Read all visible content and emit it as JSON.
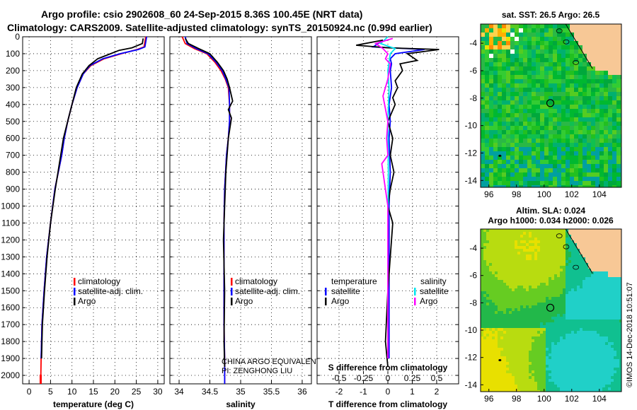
{
  "title": {
    "line1": "Argo profile: csio 2902608_60 24-Sep-2015 8.36S 100.45E (NRT data)",
    "line2": "Climatology: CARS2009. Satellite-adjusted climatology: synTS_20150924.nc (0.99d earlier)"
  },
  "colors": {
    "climatology": "#ff0000",
    "satellite": "#0000ff",
    "argo": "#000000",
    "salinity_satellite": "#00e5ee",
    "salinity_argo": "#ff00ff",
    "land": "#f7c896"
  },
  "depth_axis": {
    "ylim": [
      0,
      2050
    ],
    "ticks": [
      0,
      100,
      200,
      300,
      400,
      500,
      600,
      700,
      800,
      900,
      1000,
      1100,
      1200,
      1300,
      1400,
      1500,
      1600,
      1700,
      1800,
      1900,
      2000
    ]
  },
  "chart_data": [
    {
      "name": "temperature-profile",
      "type": "line",
      "xlabel": "temperature (deg C)",
      "xlim": [
        -1.5,
        31.5
      ],
      "xticks": [
        0,
        5,
        10,
        15,
        20,
        25,
        30
      ],
      "series": [
        {
          "name": "climatology",
          "color": "#ff0000",
          "x": [
            27.2,
            26.8,
            25.2,
            21.5,
            17.5,
            14.4,
            12.6,
            11.2,
            10.0,
            9.0,
            8.2,
            7.6,
            6.0,
            5.0,
            4.1,
            3.5,
            3.0,
            2.8,
            2.7
          ],
          "y": [
            0,
            60,
            75,
            100,
            130,
            170,
            220,
            300,
            400,
            500,
            600,
            700,
            900,
            1100,
            1300,
            1500,
            1700,
            1900,
            2050
          ]
        },
        {
          "name": "satellite-adj. clim.",
          "color": "#0000ff",
          "x": [
            27.4,
            27.0,
            25.5,
            21.2,
            17.2,
            14.2,
            12.6,
            11.2,
            10.0,
            9.0,
            8.2,
            7.6,
            6.0,
            5.0,
            4.1,
            3.5,
            3.0,
            2.8
          ],
          "y": [
            0,
            60,
            75,
            100,
            130,
            170,
            220,
            300,
            400,
            500,
            600,
            700,
            900,
            1100,
            1300,
            1500,
            1700,
            1900
          ]
        },
        {
          "name": "Argo",
          "color": "#000000",
          "x": [
            26.6,
            26.4,
            24.0,
            21.0,
            19.0,
            16.0,
            14.0,
            12.4,
            11.0,
            10.0,
            9.0,
            8.0,
            6.1,
            5.0,
            4.2,
            3.6,
            3.1,
            2.9
          ],
          "y": [
            10,
            40,
            65,
            80,
            100,
            130,
            170,
            220,
            300,
            400,
            500,
            600,
            900,
            1100,
            1300,
            1500,
            1700,
            1900
          ]
        }
      ],
      "legend": [
        "climatology",
        "satellite-adj. clim.",
        "Argo"
      ]
    },
    {
      "name": "salinity-profile",
      "type": "line",
      "xlabel": "salinity",
      "xlim": [
        33.85,
        36.15
      ],
      "xticks": [
        34,
        34.5,
        35,
        35.5,
        36
      ],
      "xticklabels": [
        "34",
        "34.5",
        "35",
        "35.5",
        "36"
      ],
      "series": [
        {
          "name": "climatology",
          "color": "#ff0000",
          "x": [
            34.05,
            34.1,
            34.25,
            34.45,
            34.58,
            34.68,
            34.75,
            34.8,
            34.82,
            34.82,
            34.8,
            34.77,
            34.74,
            34.73,
            34.73,
            34.73,
            34.74,
            34.74
          ],
          "y": [
            0,
            40,
            70,
            100,
            150,
            200,
            250,
            300,
            400,
            500,
            600,
            700,
            900,
            1100,
            1400,
            1700,
            1900,
            2050
          ]
        },
        {
          "name": "satellite-adj. clim.",
          "color": "#0000ff",
          "x": [
            34.1,
            34.13,
            34.28,
            34.47,
            34.6,
            34.7,
            34.76,
            34.81,
            34.82,
            34.82,
            34.8,
            34.77,
            34.74,
            34.73,
            34.73,
            34.73,
            34.74,
            34.74
          ],
          "y": [
            0,
            40,
            70,
            100,
            150,
            200,
            250,
            300,
            400,
            500,
            600,
            700,
            900,
            1100,
            1400,
            1700,
            1900,
            2050
          ]
        },
        {
          "name": "Argo",
          "color": "#000000",
          "x": [
            34.1,
            34.15,
            34.32,
            34.5,
            34.62,
            34.72,
            34.78,
            34.82,
            34.87,
            34.8,
            34.85,
            34.8,
            34.76,
            34.74,
            34.72,
            34.74,
            34.73,
            34.74
          ],
          "y": [
            10,
            40,
            70,
            100,
            150,
            200,
            250,
            300,
            380,
            430,
            480,
            600,
            800,
            1000,
            1200,
            1500,
            1800,
            1950
          ]
        }
      ],
      "legend": [
        "climatology",
        "satellite-adj. clim.",
        "Argo"
      ],
      "annotation": [
        "CHINA ARGO EQUIVALENT",
        "PI: ZENGHONG LIU"
      ]
    },
    {
      "name": "difference-profile",
      "type": "line",
      "xlabel": "T difference from climatology",
      "xlim": [
        -2.9,
        2.9
      ],
      "xticks": [
        -2,
        -1,
        0,
        1,
        2
      ],
      "secondary_axis": {
        "label": "S difference from climatology",
        "ticks": [
          -0.5,
          -0.25,
          0,
          0.25,
          0.5
        ],
        "ticklabels": [
          "-0.5",
          "-0.25",
          "0",
          "0.25",
          "0.5"
        ],
        "scale": 4
      },
      "series": [
        {
          "name": "temperature satellite",
          "color": "#0000ff",
          "x": [
            -0.2,
            -0.6,
            1.5,
            0.3,
            0.1,
            0.15,
            0.1,
            0.15,
            0.05,
            0.1,
            0.05,
            0.1,
            0.05,
            0.05,
            0.05,
            0.05
          ],
          "y": [
            20,
            60,
            75,
            100,
            130,
            160,
            200,
            300,
            400,
            500,
            600,
            800,
            1000,
            1300,
            1600,
            1900
          ]
        },
        {
          "name": "temperature Argo",
          "color": "#000000",
          "x": [
            -0.2,
            -1.3,
            0.0,
            2.1,
            0.8,
            1.2,
            0.5,
            0.6,
            0.3,
            0.4,
            0.2,
            0.3,
            0.0,
            0.2,
            0.1,
            0.25,
            0.1,
            0.0,
            0.2,
            0.1,
            0.0,
            -0.1,
            0.0
          ],
          "y": [
            20,
            50,
            65,
            75,
            100,
            140,
            160,
            200,
            260,
            300,
            360,
            400,
            500,
            600,
            700,
            800,
            900,
            1000,
            1100,
            1300,
            1500,
            1800,
            1950
          ]
        },
        {
          "name": "salinity satellite",
          "color": "#00e5ee",
          "x": [
            0.0,
            -0.3,
            0.3,
            0.1,
            0.05,
            0.0,
            0.05,
            0.0,
            0.02,
            0.0,
            0.0
          ],
          "y": [
            0,
            40,
            70,
            100,
            150,
            200,
            300,
            500,
            800,
            1200,
            1900
          ]
        },
        {
          "name": "salinity Argo",
          "color": "#ff00ff",
          "x": [
            0.2,
            -0.5,
            -0.2,
            0.0,
            -0.1,
            0.1,
            0.0,
            -0.2,
            0.0,
            -0.05,
            0.0,
            -0.25,
            0.0,
            0.0
          ],
          "y": [
            10,
            40,
            70,
            100,
            130,
            160,
            250,
            350,
            500,
            600,
            700,
            750,
            1000,
            1900
          ]
        }
      ],
      "legend_left_title": "temperature",
      "legend_right_title": "salinity",
      "legend_left": [
        "satellite",
        "Argo"
      ],
      "legend_right": [
        "satellite",
        "Argo"
      ]
    },
    {
      "name": "sst-map",
      "type": "heatmap",
      "title": "sat. SST: 26.5  Argo: 26.5",
      "xlim": [
        95.4,
        105.6
      ],
      "ylim": [
        -14.5,
        -2.6
      ],
      "xticks": [
        96,
        98,
        100,
        102,
        104
      ],
      "yticks": [
        -4,
        -6,
        -8,
        -10,
        -12,
        -14
      ],
      "marker": [
        100.45,
        -8.36
      ]
    },
    {
      "name": "altimetry-map",
      "type": "heatmap",
      "title_lines": [
        "Altim. SLA: 0.024",
        "Argo h1000: 0.034 h2000: 0.026"
      ],
      "xlim": [
        95.4,
        105.6
      ],
      "ylim": [
        -14.5,
        -2.6
      ],
      "xticks": [
        96,
        98,
        100,
        102,
        104
      ],
      "yticks": [
        -4,
        -6,
        -8,
        -10,
        -12,
        -14
      ],
      "marker": [
        100.45,
        -8.36
      ]
    }
  ],
  "footer": "©IMOS 14-Dec-2018 10:51:07"
}
